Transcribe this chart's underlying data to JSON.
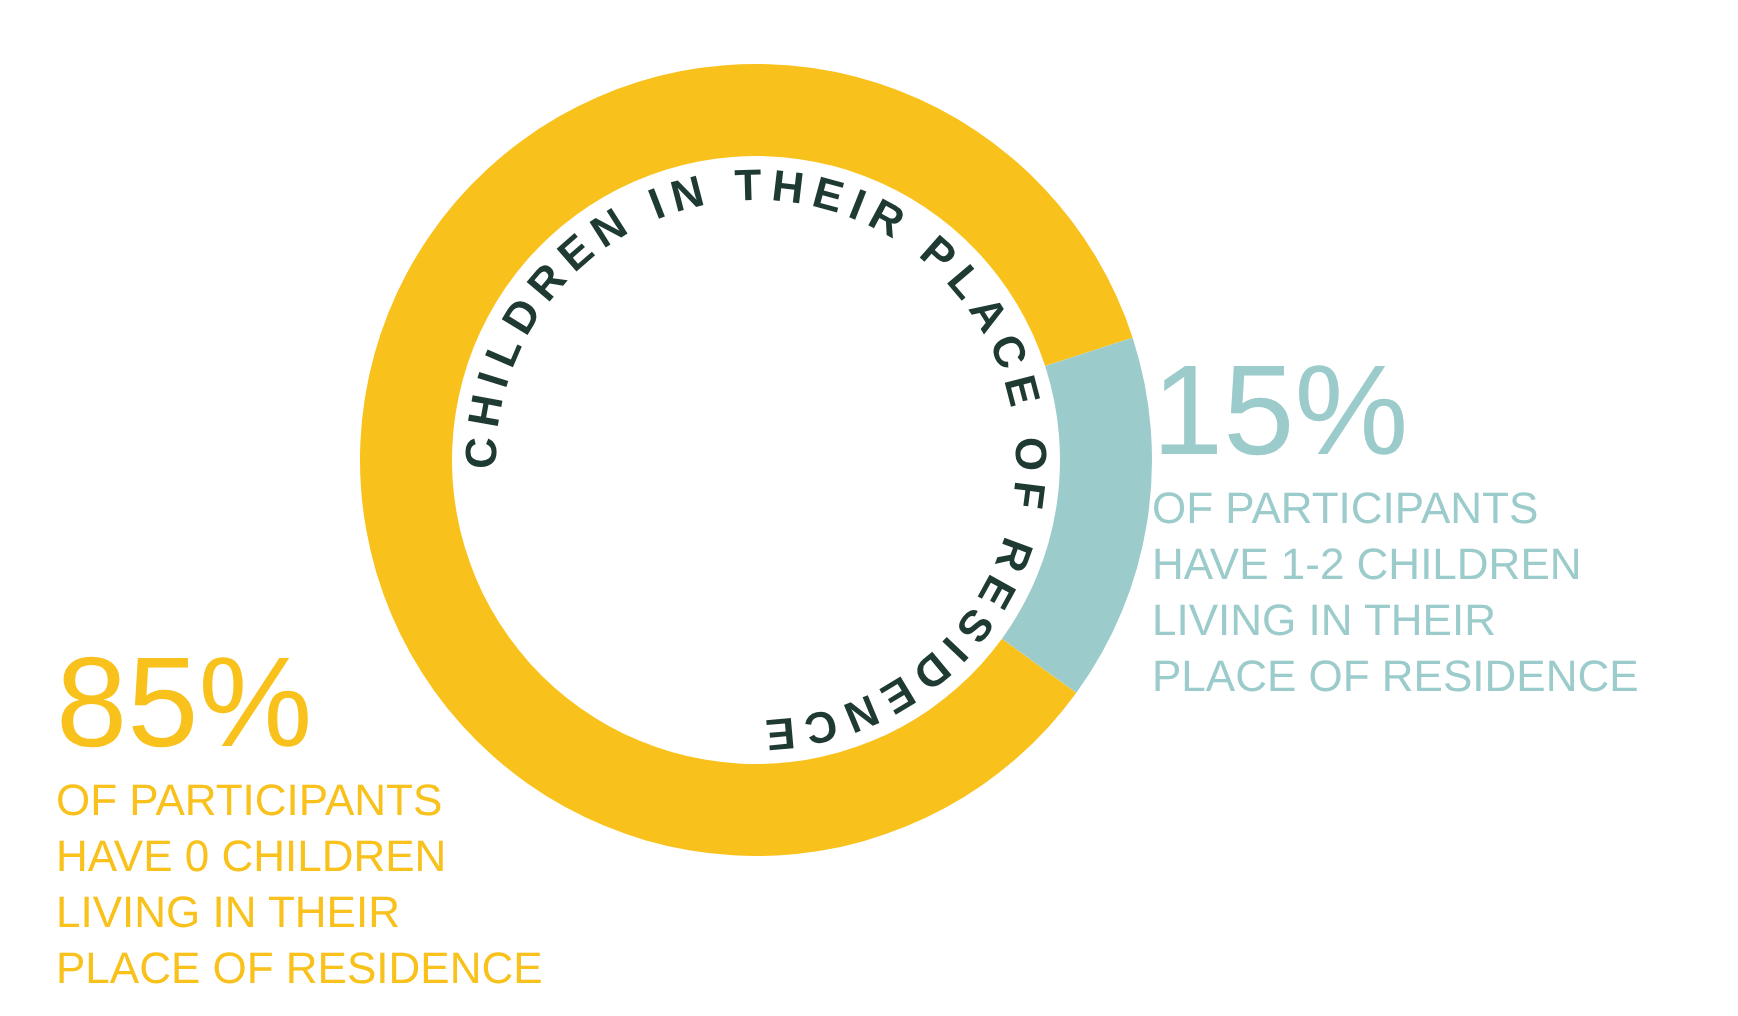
{
  "chart_data": {
    "type": "donut",
    "title": "CHILDREN IN THEIR PLACE OF RESIDENCE",
    "categories": [
      "OF PARTICIPANTS HAVE 0 CHILDREN LIVING IN THEIR PLACE OF RESIDENCE",
      "OF PARTICIPANTS HAVE 1-2 CHILDREN LIVING IN THEIR PLACE OF RESIDENCE"
    ],
    "values": [
      85,
      15
    ],
    "value_labels": [
      "85%",
      "15%"
    ],
    "colors": [
      "#f9c11c",
      "#9ccbcb"
    ]
  }
}
